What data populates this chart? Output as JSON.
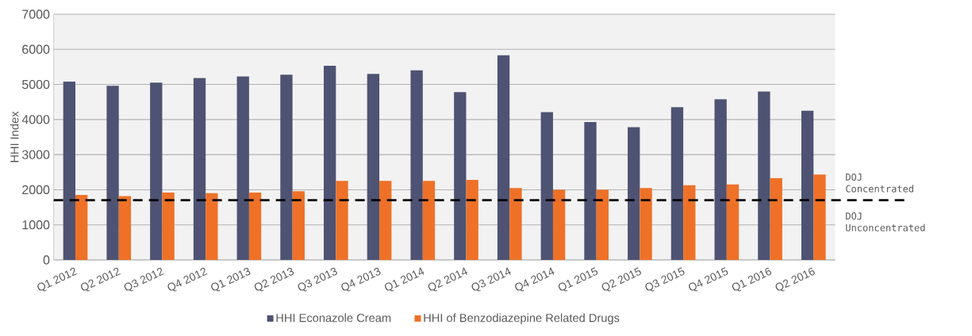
{
  "chart_data": {
    "type": "bar",
    "ylabel": "HHI Index",
    "categories": [
      "Q1 2012",
      "Q2 2012",
      "Q3 2012",
      "Q4 2012",
      "Q1 2013",
      "Q2 2013",
      "Q3 2013",
      "Q4 2013",
      "Q1 2014",
      "Q2 2014",
      "Q3 2014",
      "Q4 2014",
      "Q1 2015",
      "Q2 2015",
      "Q3 2015",
      "Q4 2015",
      "Q1 2016",
      "Q2 2016"
    ],
    "series": [
      {
        "name": "HHI Econazole Cream",
        "color": "#4e5373",
        "values": [
          5080,
          4960,
          5050,
          5180,
          5230,
          5280,
          5530,
          5300,
          5400,
          4780,
          5830,
          4210,
          3930,
          3780,
          4350,
          4580,
          4800,
          4250
        ]
      },
      {
        "name": "HHI of Benzodiazepine Related Drugs",
        "color": "#ee7127",
        "values": [
          1850,
          1820,
          1920,
          1900,
          1920,
          1960,
          2250,
          2250,
          2250,
          2280,
          2050,
          2000,
          2000,
          2050,
          2130,
          2150,
          2330,
          2430
        ]
      }
    ],
    "ylim": [
      0,
      7000
    ],
    "yticks": [
      0,
      1000,
      2000,
      3000,
      4000,
      5000,
      6000,
      7000
    ],
    "grid": "y",
    "legend": "bottom",
    "ref_lines": [
      {
        "axis": "y",
        "value": 1700,
        "color": "#000000",
        "line_style": "dashed"
      }
    ],
    "annotations": [
      {
        "text": "DOJ Concentrated",
        "y": 1700
      },
      {
        "text": "DOJ Unconcentrated",
        "y": 1700
      }
    ]
  }
}
